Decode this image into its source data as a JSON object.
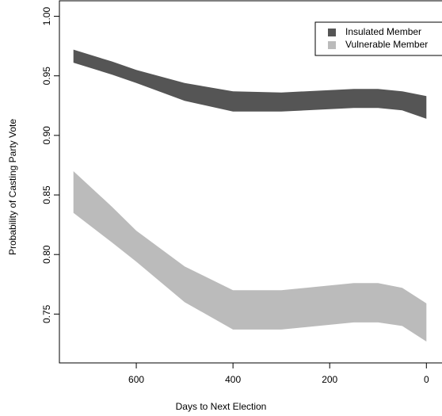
{
  "chart_data": {
    "type": "band",
    "x_label": "Days to Next Election",
    "y_label": "Probability of Casting Party Vote",
    "x": [
      730,
      650,
      600,
      500,
      400,
      300,
      200,
      150,
      100,
      50,
      0
    ],
    "series": [
      {
        "name": "Insulated Member",
        "color": "#555555",
        "upper": [
          0.972,
          0.962,
          0.955,
          0.944,
          0.937,
          0.936,
          0.938,
          0.939,
          0.939,
          0.937,
          0.933
        ],
        "lower": [
          0.961,
          0.951,
          0.944,
          0.929,
          0.92,
          0.92,
          0.922,
          0.923,
          0.923,
          0.921,
          0.914
        ]
      },
      {
        "name": "Vulnerable Member",
        "color": "#bbbbbb",
        "upper": [
          0.87,
          0.84,
          0.82,
          0.79,
          0.77,
          0.77,
          0.774,
          0.776,
          0.776,
          0.772,
          0.759
        ],
        "lower": [
          0.835,
          0.81,
          0.794,
          0.76,
          0.737,
          0.737,
          0.741,
          0.743,
          0.743,
          0.74,
          0.727
        ]
      }
    ],
    "xlim": [
      759,
      -29
    ],
    "xticks": [
      600,
      400,
      200,
      0
    ],
    "ylim": [
      0.709,
      1.013
    ],
    "yticks": [
      {
        "value": 0.75,
        "label": "0.75"
      },
      {
        "value": 0.8,
        "label": "0.80"
      },
      {
        "value": 0.85,
        "label": "0.85"
      },
      {
        "value": 0.9,
        "label": "0.90"
      },
      {
        "value": 0.95,
        "label": "0.95"
      },
      {
        "value": 1.0,
        "label": "1.00"
      }
    ],
    "legend": "top-right"
  }
}
